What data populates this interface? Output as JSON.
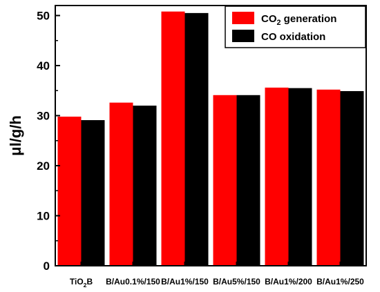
{
  "chart_data": {
    "type": "bar",
    "categories": [
      "TiO2B",
      "B/Au0.1%/150",
      "B/Au1%/150",
      "B/Au5%/150",
      "B/Au1%/200",
      "B/Au1%/250"
    ],
    "category_parts": [
      {
        "main": "TiO",
        "sub": "2",
        "rest": "B"
      },
      {
        "main": "B/Au0.1%/150",
        "sub": "",
        "rest": ""
      },
      {
        "main": "B/Au1%/150",
        "sub": "",
        "rest": ""
      },
      {
        "main": "B/Au5%/150",
        "sub": "",
        "rest": ""
      },
      {
        "main": "B/Au1%/200",
        "sub": "",
        "rest": ""
      },
      {
        "main": "B/Au1%/250",
        "sub": "",
        "rest": ""
      }
    ],
    "series": [
      {
        "name": "CO2 generation",
        "name_parts": {
          "main": "CO",
          "sub": "2",
          "rest": " generation"
        },
        "color": "#ff0000",
        "values": [
          29.8,
          32.6,
          50.8,
          34.1,
          35.6,
          35.2
        ]
      },
      {
        "name": "CO  oxidation",
        "name_parts": {
          "main": "CO  oxidation",
          "sub": "",
          "rest": ""
        },
        "color": "#000000",
        "values": [
          29.1,
          32.0,
          50.5,
          34.1,
          35.5,
          34.9
        ]
      }
    ],
    "ylabel": "μl/g/h",
    "xlabel": "",
    "title": "",
    "ylim": [
      0,
      52
    ],
    "yticks": [
      0,
      10,
      20,
      30,
      40,
      50
    ],
    "grid": false,
    "legend_position": "top-right"
  }
}
